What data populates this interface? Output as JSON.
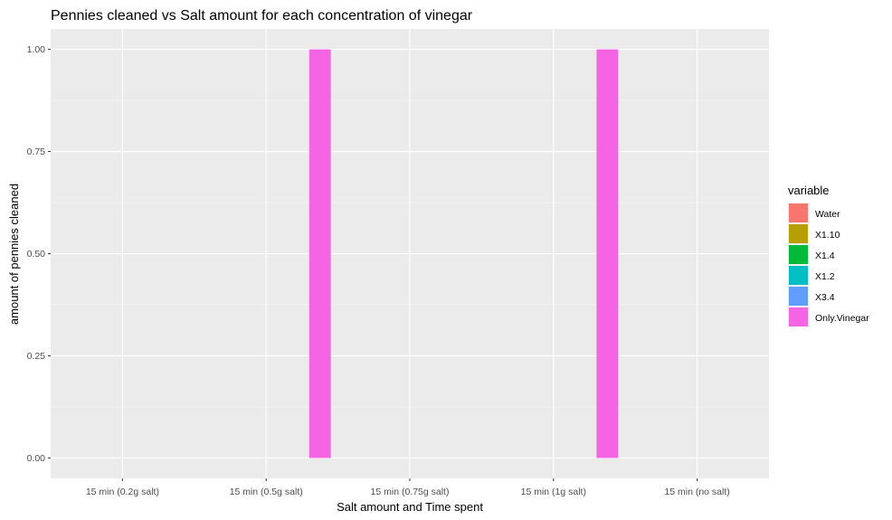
{
  "chart_data": {
    "type": "bar",
    "title": "Pennies cleaned vs Salt amount for each concentration of vinegar",
    "xlabel": "Salt amount and Time spent",
    "ylabel": "amount of pennies cleaned",
    "categories": [
      "15 min (0.2g salt)",
      "15 min (0.5g salt)",
      "15 min (0.75g salt)",
      "15 min (1g salt)",
      "15 min (no salt)"
    ],
    "ylim": [
      0,
      1
    ],
    "yticks": [
      "0.00",
      "0.25",
      "0.50",
      "0.75",
      "1.00"
    ],
    "grid": true,
    "legend": {
      "title": "variable",
      "position": "right"
    },
    "series": [
      {
        "name": "Water",
        "color": "#F8766D",
        "values": [
          0,
          0,
          0,
          0,
          0
        ]
      },
      {
        "name": "X1.10",
        "color": "#B79F00",
        "values": [
          0,
          0,
          0,
          0,
          0
        ]
      },
      {
        "name": "X1.4",
        "color": "#00BA38",
        "values": [
          0,
          0,
          0,
          0,
          0
        ]
      },
      {
        "name": "X1.2",
        "color": "#00BFC4",
        "values": [
          0,
          0,
          0,
          0,
          0
        ]
      },
      {
        "name": "X3.4",
        "color": "#619CFF",
        "values": [
          0,
          0,
          0,
          0,
          0
        ]
      },
      {
        "name": "Only.Vinegar",
        "color": "#F564E3",
        "values": [
          0,
          1,
          0,
          1,
          0
        ]
      }
    ]
  }
}
